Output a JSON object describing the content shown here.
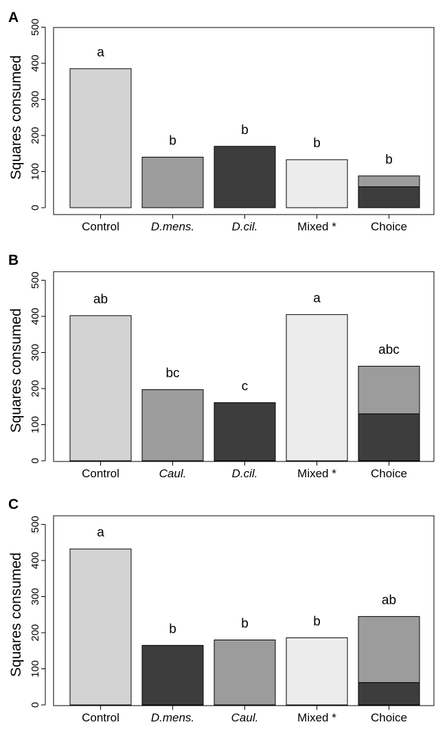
{
  "colors": {
    "light_gray": "#d3d3d3",
    "medium_gray": "#9c9c9c",
    "dark_gray": "#3d3d3d",
    "very_light_gray": "#ececec",
    "stroke": "#000000"
  },
  "chart_data": [
    {
      "type": "bar",
      "panel_label": "A",
      "ylabel": "Squares consumed",
      "ylim": [
        0,
        500
      ],
      "yticks": [
        "0",
        "100",
        "200",
        "300",
        "400",
        "500"
      ],
      "categories": [
        {
          "label": "Control",
          "italic": false
        },
        {
          "label": "D.mens.",
          "italic": true
        },
        {
          "label": "D.cil.",
          "italic": true
        },
        {
          "label": "Mixed *",
          "italic": false
        },
        {
          "label": "Choice",
          "italic": false
        }
      ],
      "bars": [
        {
          "segments": [
            {
              "value": 385,
              "color": "light_gray"
            }
          ],
          "sig": "a"
        },
        {
          "segments": [
            {
              "value": 140,
              "color": "medium_gray"
            }
          ],
          "sig": "b"
        },
        {
          "segments": [
            {
              "value": 170,
              "color": "dark_gray"
            }
          ],
          "sig": "b"
        },
        {
          "segments": [
            {
              "value": 133,
              "color": "very_light_gray"
            }
          ],
          "sig": "b"
        },
        {
          "segments": [
            {
              "value": 58,
              "color": "dark_gray"
            },
            {
              "value": 30,
              "color": "medium_gray"
            }
          ],
          "sig": "b"
        }
      ]
    },
    {
      "type": "bar",
      "panel_label": "B",
      "ylabel": "Squares consumed",
      "ylim": [
        0,
        500
      ],
      "yticks": [
        "0",
        "100",
        "200",
        "300",
        "400",
        "500"
      ],
      "categories": [
        {
          "label": "Control",
          "italic": false
        },
        {
          "label": "Caul.",
          "italic": true
        },
        {
          "label": "D.cil.",
          "italic": true
        },
        {
          "label": "Mixed *",
          "italic": false
        },
        {
          "label": "Choice",
          "italic": false
        }
      ],
      "bars": [
        {
          "segments": [
            {
              "value": 402,
              "color": "light_gray"
            }
          ],
          "sig": "ab"
        },
        {
          "segments": [
            {
              "value": 197,
              "color": "medium_gray"
            }
          ],
          "sig": "bc"
        },
        {
          "segments": [
            {
              "value": 161,
              "color": "dark_gray"
            }
          ],
          "sig": "c"
        },
        {
          "segments": [
            {
              "value": 405,
              "color": "very_light_gray"
            }
          ],
          "sig": "a"
        },
        {
          "segments": [
            {
              "value": 130,
              "color": "dark_gray"
            },
            {
              "value": 132,
              "color": "medium_gray"
            }
          ],
          "sig": "abc"
        }
      ]
    },
    {
      "type": "bar",
      "panel_label": "C",
      "ylabel": "Squares consumed",
      "ylim": [
        0,
        500
      ],
      "yticks": [
        "0",
        "100",
        "200",
        "300",
        "400",
        "500"
      ],
      "categories": [
        {
          "label": "Control",
          "italic": false
        },
        {
          "label": "D.mens.",
          "italic": true
        },
        {
          "label": "Caul.",
          "italic": true
        },
        {
          "label": "Mixed *",
          "italic": false
        },
        {
          "label": "Choice",
          "italic": false
        }
      ],
      "bars": [
        {
          "segments": [
            {
              "value": 432,
              "color": "light_gray"
            }
          ],
          "sig": "a"
        },
        {
          "segments": [
            {
              "value": 165,
              "color": "dark_gray"
            }
          ],
          "sig": "b"
        },
        {
          "segments": [
            {
              "value": 180,
              "color": "medium_gray"
            }
          ],
          "sig": "b"
        },
        {
          "segments": [
            {
              "value": 186,
              "color": "very_light_gray"
            }
          ],
          "sig": "b"
        },
        {
          "segments": [
            {
              "value": 62,
              "color": "dark_gray"
            },
            {
              "value": 183,
              "color": "medium_gray"
            }
          ],
          "sig": "ab"
        }
      ]
    }
  ]
}
